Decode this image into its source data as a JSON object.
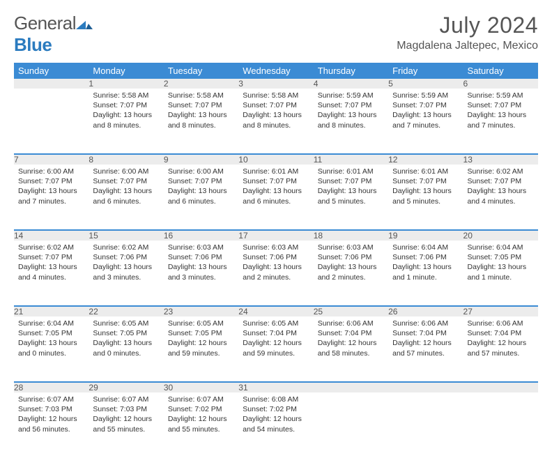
{
  "brand": {
    "word1": "General",
    "word2": "Blue"
  },
  "title": "July 2024",
  "location": "Magdalena Jaltepec, Mexico",
  "colors": {
    "header_bg": "#3b8bd4",
    "header_fg": "#ffffff",
    "daynum_bg": "#ececec",
    "rule": "#3b8bd4",
    "text": "#333333",
    "brand_gray": "#555555",
    "brand_blue": "#2b7bbf"
  },
  "weekdays": [
    "Sunday",
    "Monday",
    "Tuesday",
    "Wednesday",
    "Thursday",
    "Friday",
    "Saturday"
  ],
  "weeks": [
    [
      null,
      {
        "n": "1",
        "sr": "5:58 AM",
        "ss": "7:07 PM",
        "dl": "13 hours and 8 minutes."
      },
      {
        "n": "2",
        "sr": "5:58 AM",
        "ss": "7:07 PM",
        "dl": "13 hours and 8 minutes."
      },
      {
        "n": "3",
        "sr": "5:58 AM",
        "ss": "7:07 PM",
        "dl": "13 hours and 8 minutes."
      },
      {
        "n": "4",
        "sr": "5:59 AM",
        "ss": "7:07 PM",
        "dl": "13 hours and 8 minutes."
      },
      {
        "n": "5",
        "sr": "5:59 AM",
        "ss": "7:07 PM",
        "dl": "13 hours and 7 minutes."
      },
      {
        "n": "6",
        "sr": "5:59 AM",
        "ss": "7:07 PM",
        "dl": "13 hours and 7 minutes."
      }
    ],
    [
      {
        "n": "7",
        "sr": "6:00 AM",
        "ss": "7:07 PM",
        "dl": "13 hours and 7 minutes."
      },
      {
        "n": "8",
        "sr": "6:00 AM",
        "ss": "7:07 PM",
        "dl": "13 hours and 6 minutes."
      },
      {
        "n": "9",
        "sr": "6:00 AM",
        "ss": "7:07 PM",
        "dl": "13 hours and 6 minutes."
      },
      {
        "n": "10",
        "sr": "6:01 AM",
        "ss": "7:07 PM",
        "dl": "13 hours and 6 minutes."
      },
      {
        "n": "11",
        "sr": "6:01 AM",
        "ss": "7:07 PM",
        "dl": "13 hours and 5 minutes."
      },
      {
        "n": "12",
        "sr": "6:01 AM",
        "ss": "7:07 PM",
        "dl": "13 hours and 5 minutes."
      },
      {
        "n": "13",
        "sr": "6:02 AM",
        "ss": "7:07 PM",
        "dl": "13 hours and 4 minutes."
      }
    ],
    [
      {
        "n": "14",
        "sr": "6:02 AM",
        "ss": "7:07 PM",
        "dl": "13 hours and 4 minutes."
      },
      {
        "n": "15",
        "sr": "6:02 AM",
        "ss": "7:06 PM",
        "dl": "13 hours and 3 minutes."
      },
      {
        "n": "16",
        "sr": "6:03 AM",
        "ss": "7:06 PM",
        "dl": "13 hours and 3 minutes."
      },
      {
        "n": "17",
        "sr": "6:03 AM",
        "ss": "7:06 PM",
        "dl": "13 hours and 2 minutes."
      },
      {
        "n": "18",
        "sr": "6:03 AM",
        "ss": "7:06 PM",
        "dl": "13 hours and 2 minutes."
      },
      {
        "n": "19",
        "sr": "6:04 AM",
        "ss": "7:06 PM",
        "dl": "13 hours and 1 minute."
      },
      {
        "n": "20",
        "sr": "6:04 AM",
        "ss": "7:05 PM",
        "dl": "13 hours and 1 minute."
      }
    ],
    [
      {
        "n": "21",
        "sr": "6:04 AM",
        "ss": "7:05 PM",
        "dl": "13 hours and 0 minutes."
      },
      {
        "n": "22",
        "sr": "6:05 AM",
        "ss": "7:05 PM",
        "dl": "13 hours and 0 minutes."
      },
      {
        "n": "23",
        "sr": "6:05 AM",
        "ss": "7:05 PM",
        "dl": "12 hours and 59 minutes."
      },
      {
        "n": "24",
        "sr": "6:05 AM",
        "ss": "7:04 PM",
        "dl": "12 hours and 59 minutes."
      },
      {
        "n": "25",
        "sr": "6:06 AM",
        "ss": "7:04 PM",
        "dl": "12 hours and 58 minutes."
      },
      {
        "n": "26",
        "sr": "6:06 AM",
        "ss": "7:04 PM",
        "dl": "12 hours and 57 minutes."
      },
      {
        "n": "27",
        "sr": "6:06 AM",
        "ss": "7:04 PM",
        "dl": "12 hours and 57 minutes."
      }
    ],
    [
      {
        "n": "28",
        "sr": "6:07 AM",
        "ss": "7:03 PM",
        "dl": "12 hours and 56 minutes."
      },
      {
        "n": "29",
        "sr": "6:07 AM",
        "ss": "7:03 PM",
        "dl": "12 hours and 55 minutes."
      },
      {
        "n": "30",
        "sr": "6:07 AM",
        "ss": "7:02 PM",
        "dl": "12 hours and 55 minutes."
      },
      {
        "n": "31",
        "sr": "6:08 AM",
        "ss": "7:02 PM",
        "dl": "12 hours and 54 minutes."
      },
      null,
      null,
      null
    ]
  ],
  "labels": {
    "sunrise": "Sunrise:",
    "sunset": "Sunset:",
    "daylight": "Daylight:"
  }
}
